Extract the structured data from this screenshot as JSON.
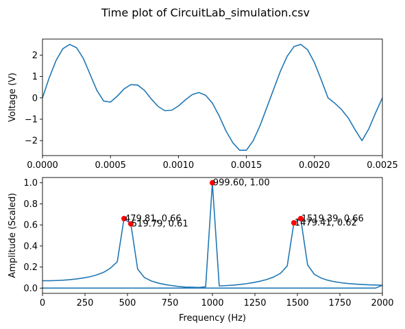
{
  "figure": {
    "title": "Time plot of CircuitLab_simulation.csv"
  },
  "colors": {
    "line": "#1f77b4",
    "marker": "#ff0000",
    "axes": "#000000",
    "background": "#ffffff"
  },
  "chart_data": [
    {
      "type": "line",
      "title": "",
      "xlabel": "",
      "ylabel": "Voltage (V)",
      "xlim": [
        0,
        0.0025
      ],
      "ylim": [
        -2.7,
        2.75
      ],
      "xticks": [
        "0.0000",
        "0.0005",
        "0.0010",
        "0.0015",
        "0.0020",
        "0.0025"
      ],
      "xtick_values": [
        0,
        0.0005,
        0.001,
        0.0015,
        0.002,
        0.0025
      ],
      "yticks": [
        "−2",
        "−1",
        "0",
        "1",
        "2"
      ],
      "ytick_values": [
        -2,
        -1,
        0,
        1,
        2
      ],
      "grid": false,
      "series": [
        {
          "x": [
            0,
            5e-05,
            0.0001,
            0.00015,
            0.0002,
            0.00025,
            0.0003,
            0.00035,
            0.0004,
            0.00045,
            0.0005,
            0.00055,
            0.0006,
            0.00065,
            0.0007,
            0.00075,
            0.0008,
            0.00085,
            0.0009,
            0.00095,
            0.001,
            0.00105,
            0.0011,
            0.00115,
            0.0012,
            0.00125,
            0.0013,
            0.00135,
            0.0014,
            0.00145,
            0.0015,
            0.00155,
            0.0016,
            0.00165,
            0.0017,
            0.00175,
            0.0018,
            0.00185,
            0.0019,
            0.00195,
            0.002,
            0.00205,
            0.0021,
            0.00215,
            0.0022,
            0.00225,
            0.0023,
            0.00235,
            0.0024,
            0.00245,
            0.0025
          ],
          "y": [
            0.0,
            0.95,
            1.75,
            2.3,
            2.5,
            2.35,
            1.85,
            1.1,
            0.35,
            -0.15,
            -0.2,
            0.08,
            0.42,
            0.62,
            0.6,
            0.35,
            -0.05,
            -0.4,
            -0.6,
            -0.58,
            -0.38,
            -0.1,
            0.15,
            0.25,
            0.12,
            -0.25,
            -0.85,
            -1.55,
            -2.1,
            -2.45,
            -2.45,
            -2.0,
            -1.3,
            -0.45,
            0.4,
            1.25,
            1.95,
            2.4,
            2.5,
            2.25,
            1.65,
            0.85,
            0.0,
            -0.25,
            -0.55,
            -0.95,
            -1.5,
            -2.0,
            -1.45,
            -0.7,
            0.0
          ]
        }
      ]
    },
    {
      "type": "line",
      "title": "",
      "xlabel": "Frequency (Hz)",
      "ylabel": "Amplitude (Scaled)",
      "xlim": [
        0,
        2000
      ],
      "ylim": [
        -0.05,
        1.05
      ],
      "xticks": [
        "0",
        "250",
        "500",
        "750",
        "1000",
        "1250",
        "1500",
        "1750",
        "2000"
      ],
      "xtick_values": [
        0,
        250,
        500,
        750,
        1000,
        1250,
        1500,
        1750,
        2000
      ],
      "yticks": [
        "0.0",
        "0.2",
        "0.4",
        "0.6",
        "0.8",
        "1.0"
      ],
      "ytick_values": [
        0,
        0.2,
        0.4,
        0.6,
        0.8,
        1.0
      ],
      "grid": false,
      "series": [
        {
          "x": [
            0,
            40,
            80,
            120,
            160,
            200,
            240,
            280,
            320,
            360,
            400,
            440,
            479.81,
            519.79,
            560,
            600,
            640,
            680,
            720,
            760,
            800,
            840,
            880,
            920,
            960,
            999.6,
            1040,
            1080,
            1120,
            1160,
            1200,
            1240,
            1280,
            1320,
            1360,
            1400,
            1440,
            1479.41,
            1519.39,
            1560,
            1600,
            1640,
            1680,
            1720,
            1760,
            1800,
            1840,
            1880,
            1920,
            1960,
            2000,
            1960,
            1900,
            1800,
            1600,
            1200,
            800,
            400,
            0
          ],
          "y": [
            0.07,
            0.07,
            0.072,
            0.075,
            0.08,
            0.087,
            0.096,
            0.108,
            0.126,
            0.15,
            0.19,
            0.25,
            0.66,
            0.61,
            0.18,
            0.1,
            0.068,
            0.048,
            0.034,
            0.024,
            0.016,
            0.01,
            0.008,
            0.006,
            0.012,
            1.0,
            0.02,
            0.024,
            0.028,
            0.034,
            0.042,
            0.052,
            0.065,
            0.082,
            0.105,
            0.14,
            0.21,
            0.62,
            0.66,
            0.22,
            0.13,
            0.095,
            0.074,
            0.06,
            0.05,
            0.043,
            0.038,
            0.034,
            0.031,
            0.029,
            0.027,
            0.0,
            0.0,
            0.0,
            0.0,
            0.0,
            0.0,
            0.0,
            0.0
          ]
        }
      ],
      "peaks": [
        {
          "x": 479.81,
          "y": 0.66,
          "label": "479.81, 0.66"
        },
        {
          "x": 519.79,
          "y": 0.61,
          "label": "519.79, 0.61"
        },
        {
          "x": 999.6,
          "y": 1.0,
          "label": "999.60, 1.00"
        },
        {
          "x": 1479.41,
          "y": 0.62,
          "label": "1479.41, 0.62"
        },
        {
          "x": 1519.39,
          "y": 0.66,
          "label": "1519.39, 0.66"
        }
      ]
    }
  ]
}
